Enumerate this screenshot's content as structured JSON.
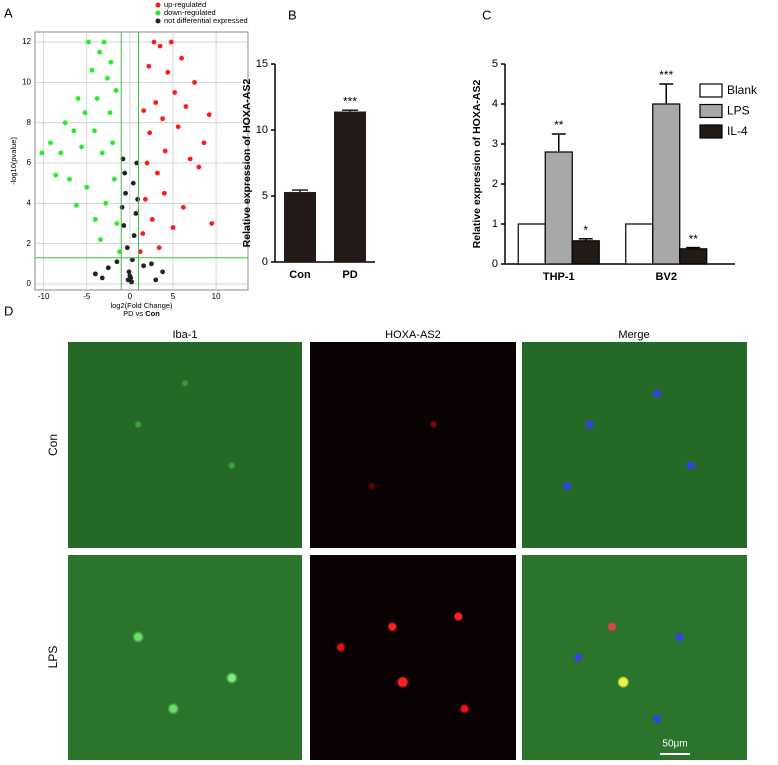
{
  "panel_labels": [
    "A",
    "B",
    "C",
    "D"
  ],
  "chart_data": [
    {
      "type": "scatter",
      "x_label": "log2(Fold Change)",
      "subtitle_prefix": "PD vs ",
      "subtitle_bold": "Con",
      "y_label": "-log10(pvalue)",
      "xlim": [
        -11,
        13.7
      ],
      "xticks": [
        -10,
        -5,
        0,
        5,
        10
      ],
      "ylim": [
        -0.3,
        12.5
      ],
      "yticks": [
        0,
        2,
        4,
        6,
        8,
        10,
        12
      ],
      "grid": true,
      "thresholds_x": [
        -1,
        1
      ],
      "threshold_y": 1.3,
      "threshold_color": "#3fbf3f",
      "series": [
        {
          "name": "up-regulated",
          "color": "#ff1a1a",
          "x": [
            1.2,
            1.5,
            1.8,
            2.0,
            2.3,
            2.6,
            3.0,
            3.2,
            3.5,
            3.8,
            4.1,
            4.4,
            4.8,
            5.2,
            5.6,
            6.0,
            6.5,
            7.0,
            7.5,
            8.0,
            8.6,
            9.2,
            9.5,
            2.8,
            4.0,
            5.0,
            6.2,
            1.6,
            2.2,
            3.4
          ],
          "y": [
            1.6,
            2.5,
            4.2,
            6.0,
            7.5,
            3.2,
            9.0,
            5.5,
            11.8,
            8.2,
            6.6,
            10.5,
            12.0,
            9.5,
            7.8,
            11.2,
            8.8,
            6.2,
            10.0,
            5.8,
            7.0,
            8.4,
            3.0,
            12.0,
            4.5,
            2.8,
            3.8,
            8.6,
            10.8,
            1.8
          ]
        },
        {
          "name": "down-regulated",
          "color": "#22ee22",
          "x": [
            -1.2,
            -1.5,
            -1.8,
            -2.0,
            -2.3,
            -2.6,
            -3.0,
            -3.2,
            -3.5,
            -3.8,
            -4.1,
            -4.4,
            -4.8,
            -5.2,
            -5.6,
            -6.0,
            -6.5,
            -7.0,
            -7.5,
            -8.0,
            -8.6,
            -9.2,
            -10.2,
            -2.8,
            -4.0,
            -5.0,
            -6.2,
            -1.6,
            -2.2,
            -3.4
          ],
          "y": [
            1.6,
            3.0,
            5.2,
            7.0,
            8.5,
            10.2,
            12.0,
            6.5,
            11.5,
            9.2,
            7.6,
            10.6,
            12.0,
            8.5,
            6.8,
            9.2,
            7.6,
            5.2,
            8.0,
            6.5,
            5.4,
            7.0,
            6.5,
            4.0,
            3.2,
            4.8,
            3.9,
            9.6,
            11.0,
            2.2
          ]
        },
        {
          "name": "not differential expressed",
          "color": "#222222",
          "x": [
            -0.9,
            -0.7,
            -0.5,
            -0.3,
            -0.1,
            0.1,
            0.3,
            0.5,
            0.7,
            0.9,
            -0.6,
            0.4,
            -0.2,
            0.2,
            0,
            -2.5,
            -4.0,
            2.5,
            3.8,
            -1.5,
            1.6,
            -0.8,
            0.8,
            -3.2,
            3.0
          ],
          "y": [
            3.8,
            2.9,
            4.5,
            1.8,
            0.6,
            0.3,
            1.2,
            2.4,
            3.5,
            4.2,
            5.5,
            5.0,
            0.2,
            0.1,
            0.4,
            0.8,
            0.5,
            1.0,
            0.6,
            1.1,
            0.9,
            6.2,
            6.0,
            0.3,
            0.2
          ]
        }
      ]
    },
    {
      "type": "bar",
      "y_label": "Relative expression of HOXA-AS2",
      "categories": [
        "Con",
        "PD"
      ],
      "values": [
        5.3,
        11.4
      ],
      "errors": [
        0.15,
        0.1
      ],
      "significance": [
        null,
        "***"
      ],
      "color": "#231a17",
      "ylim": [
        0,
        15
      ],
      "yticks": [
        0,
        5,
        10,
        15
      ]
    },
    {
      "type": "grouped_bar",
      "y_label": "Relative expression of HOXA-AS2",
      "categories": [
        "THP-1",
        "BV2"
      ],
      "ylim": [
        0,
        5
      ],
      "yticks": [
        0,
        1,
        2,
        3,
        4,
        5
      ],
      "series": [
        {
          "name": "Blank",
          "color": "#ffffff",
          "values": [
            1,
            1
          ],
          "errors": [
            0,
            0
          ],
          "significance": [
            null,
            null
          ]
        },
        {
          "name": "LPS",
          "color": "#a8a8a8",
          "values": [
            2.8,
            4.0
          ],
          "errors": [
            0.45,
            0.5
          ],
          "significance": [
            "**",
            "***"
          ]
        },
        {
          "name": "IL-4",
          "color": "#231a17",
          "values": [
            0.58,
            0.38
          ],
          "errors": [
            0.05,
            0.03
          ],
          "significance": [
            "*",
            "**"
          ]
        }
      ]
    }
  ],
  "images": {
    "columns": [
      "Iba-1",
      "HOXA-AS2",
      "Merge"
    ],
    "rows": [
      "Con",
      "LPS"
    ],
    "scale_bar": "50μm"
  }
}
